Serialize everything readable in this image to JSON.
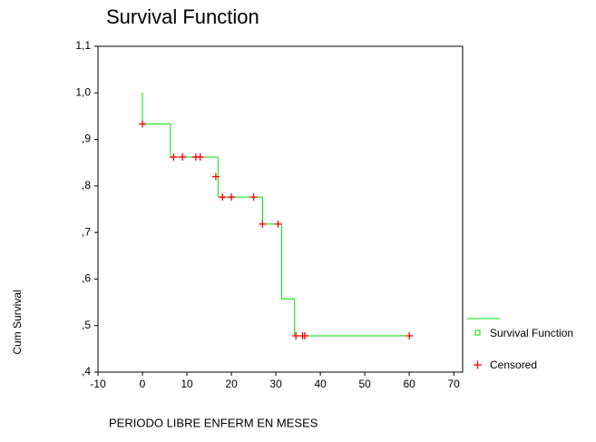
{
  "chart_data": {
    "type": "survival",
    "title": "Survival Function",
    "x_label": "PERIODO LIBRE ENFERM EN MESES",
    "y_label": "Cum Survival",
    "xlim": [
      -10,
      72
    ],
    "xticks": [
      -10,
      0,
      10,
      20,
      30,
      40,
      50,
      60,
      70
    ],
    "ylim": [
      0.4,
      1.1
    ],
    "yticks": [
      {
        "value": 0.4,
        "label": ",4"
      },
      {
        "value": 0.5,
        "label": ",5"
      },
      {
        "value": 0.6,
        "label": ",6"
      },
      {
        "value": 0.7,
        "label": ",7"
      },
      {
        "value": 0.8,
        "label": ",8"
      },
      {
        "value": 0.9,
        "label": ",9"
      },
      {
        "value": 1.0,
        "label": "1,0"
      },
      {
        "value": 1.1,
        "label": "1,1"
      }
    ],
    "series": [
      {
        "name": "Survival Function",
        "color": "#00e000",
        "x": [
          0,
          0,
          6.3,
          17,
          27,
          31.3,
          34.2,
          60
        ],
        "values": [
          1.0,
          0.933,
          0.862,
          0.776,
          0.718,
          0.557,
          0.478,
          0.478
        ]
      },
      {
        "name": "Censored",
        "color": "#ff0000",
        "x": [
          0,
          7,
          9,
          12,
          13,
          16.5,
          18,
          20,
          25,
          27,
          30.5,
          34.5,
          36,
          36.5,
          60
        ],
        "values": [
          0.933,
          0.862,
          0.862,
          0.862,
          0.862,
          0.82,
          0.776,
          0.776,
          0.776,
          0.718,
          0.718,
          0.478,
          0.478,
          0.478,
          0.478
        ]
      }
    ]
  }
}
